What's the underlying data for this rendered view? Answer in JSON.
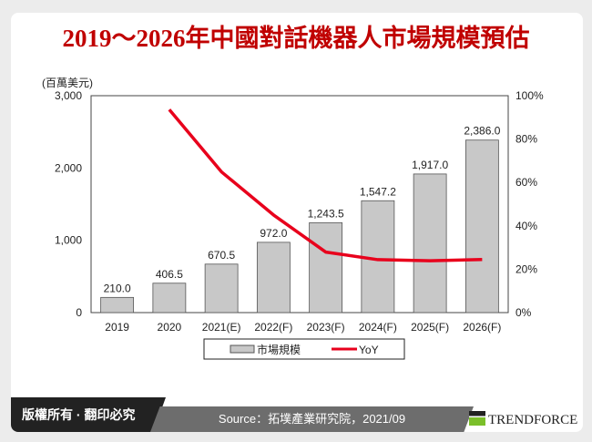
{
  "title": "2019～2026年中國對話機器人市場規模預估",
  "footer": {
    "copyright": "版權所有 · 翻印必究",
    "source": "Source：拓墣產業研究院，2021/09",
    "brand": "TRENDFORCE"
  },
  "chart_data": {
    "type": "bar+line",
    "categories": [
      "2019",
      "2020",
      "2021(E)",
      "2022(F)",
      "2023(F)",
      "2024(F)",
      "2025(F)",
      "2026(F)"
    ],
    "series": [
      {
        "name": "市場規模",
        "type": "bar",
        "axis": "left",
        "values": [
          210.0,
          406.5,
          670.5,
          972.0,
          1243.5,
          1547.2,
          1917.0,
          2386.0
        ],
        "labels": [
          "210.0",
          "406.5",
          "670.5",
          "972.0",
          "1,243.5",
          "1,547.2",
          "1,917.0",
          "2,386.0"
        ],
        "color": "#c8c8c8"
      },
      {
        "name": "YoY",
        "type": "line",
        "axis": "right",
        "values": [
          null,
          93.6,
          64.9,
          45.0,
          27.9,
          24.4,
          23.9,
          24.5
        ],
        "color": "#e8001c"
      }
    ],
    "ylabel": "(百萬美元)",
    "ylim": [
      0,
      3000
    ],
    "yticks": [
      "0",
      "1,000",
      "2,000",
      "3,000"
    ],
    "y2lim": [
      0,
      100
    ],
    "y2ticks": [
      "0%",
      "20%",
      "40%",
      "60%",
      "80%",
      "100%"
    ],
    "legend": "bottom",
    "grid": false
  }
}
